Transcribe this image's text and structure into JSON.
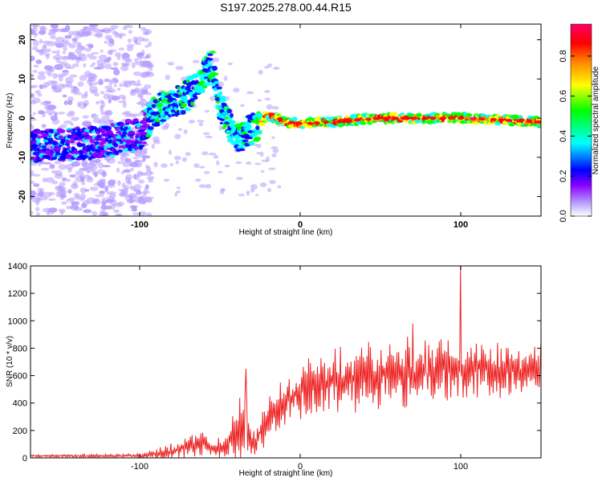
{
  "chart_data": [
    {
      "type": "heatmap",
      "title": "S197.2025.278.00.44.R15",
      "xlabel": "Height of straight line (km)",
      "ylabel": "Frequency (Hz)",
      "xlim": [
        -168,
        150
      ],
      "ylim": [
        -25,
        24
      ],
      "xticks": [
        -100,
        0,
        100
      ],
      "xtick_labels": [
        "-100",
        "0",
        "100"
      ],
      "yticks": [
        -20,
        -10,
        0,
        10,
        20
      ],
      "ytick_labels": [
        "-20",
        "-10",
        "0",
        "10",
        "20"
      ],
      "colorbar": {
        "label": "Normalized spectral amplitude",
        "range": [
          0,
          0.96
        ],
        "ticks": [
          0.0,
          0.2,
          0.4,
          0.6,
          0.8
        ],
        "tick_labels": [
          "0.0",
          "0.2",
          "0.4",
          "0.6",
          "0.8"
        ],
        "colors": [
          "#ffffff",
          "#b69cff",
          "#8a00ff",
          "#0000ff",
          "#00ffff",
          "#00ff00",
          "#ffff00",
          "#ff8800",
          "#ff0000",
          "#ff0066"
        ]
      },
      "ridge": {
        "description_points": [
          {
            "x": -150,
            "y": -7
          },
          {
            "x": -120,
            "y": -6
          },
          {
            "x": -100,
            "y": -4
          },
          {
            "x": -90,
            "y": 2
          },
          {
            "x": -80,
            "y": 4
          },
          {
            "x": -70,
            "y": 6
          },
          {
            "x": -60,
            "y": 11
          },
          {
            "x": -55,
            "y": 14
          },
          {
            "x": -50,
            "y": 3
          },
          {
            "x": -40,
            "y": -5
          },
          {
            "x": -30,
            "y": -3
          },
          {
            "x": -20,
            "y": 1
          },
          {
            "x": -10,
            "y": -1
          },
          {
            "x": 0,
            "y": -1.5
          },
          {
            "x": 50,
            "y": 0
          },
          {
            "x": 100,
            "y": 0
          },
          {
            "x": 150,
            "y": -1
          }
        ]
      }
    },
    {
      "type": "line",
      "xlabel": "Height of straight line (km)",
      "ylabel": "SNR (10 * v/v)",
      "xlim": [
        -168,
        150
      ],
      "ylim": [
        0,
        1400
      ],
      "xticks": [
        -100,
        0,
        100
      ],
      "xtick_labels": [
        "-100",
        "0",
        "100"
      ],
      "yticks": [
        0,
        200,
        400,
        600,
        800,
        1000,
        1200,
        1400
      ],
      "ytick_labels": [
        "0",
        "200",
        "400",
        "600",
        "800",
        "1000",
        "1200",
        "1400"
      ],
      "series": [
        {
          "name": "SNR",
          "color": "#ee2222",
          "envelope": [
            {
              "x": -168,
              "base": 15,
              "amp": 15
            },
            {
              "x": -100,
              "base": 15,
              "amp": 20
            },
            {
              "x": -80,
              "base": 40,
              "amp": 90
            },
            {
              "x": -63,
              "base": 120,
              "amp": 150
            },
            {
              "x": -55,
              "base": 60,
              "amp": 60
            },
            {
              "x": -45,
              "base": 80,
              "amp": 160
            },
            {
              "x": -36,
              "base": 250,
              "amp": 380
            },
            {
              "x": -28,
              "base": 100,
              "amp": 120
            },
            {
              "x": -20,
              "base": 300,
              "amp": 250
            },
            {
              "x": -10,
              "base": 400,
              "amp": 250
            },
            {
              "x": 0,
              "base": 500,
              "amp": 300
            },
            {
              "x": 20,
              "base": 550,
              "amp": 320
            },
            {
              "x": 50,
              "base": 600,
              "amp": 340
            },
            {
              "x": 70,
              "base": 620,
              "amp": 350
            },
            {
              "x": 100,
              "base": 640,
              "amp": 300
            },
            {
              "x": 150,
              "base": 640,
              "amp": 240
            }
          ],
          "spikes": [
            {
              "x": -34,
              "y": 650
            },
            {
              "x": 70,
              "y": 980
            },
            {
              "x": 100,
              "y": 1400
            },
            {
              "x": 150,
              "y": 830
            }
          ]
        }
      ]
    }
  ]
}
